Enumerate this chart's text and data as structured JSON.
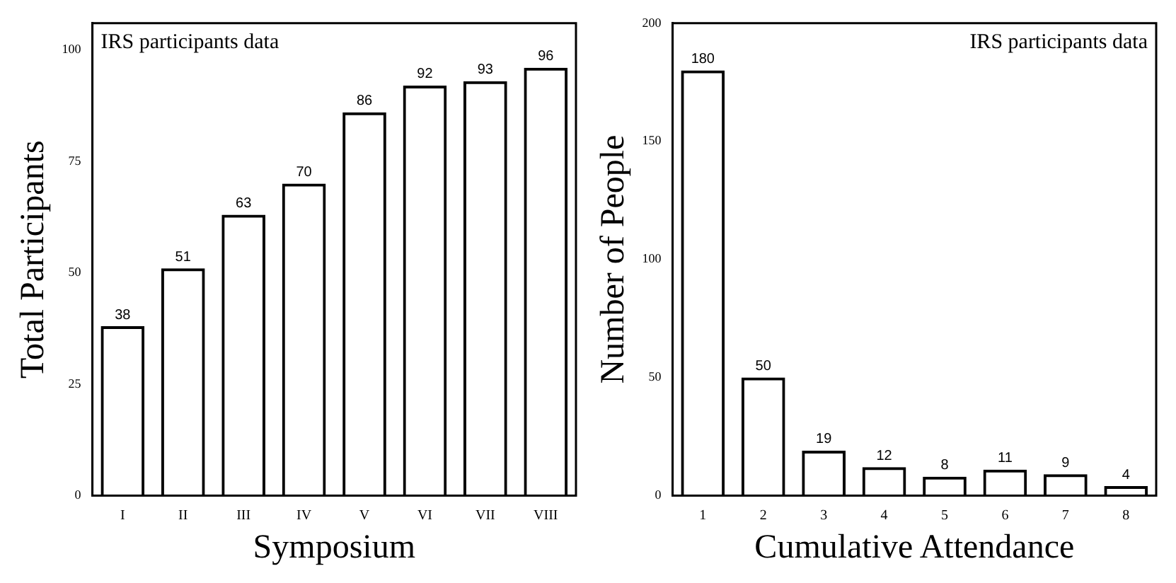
{
  "chart_data": [
    {
      "type": "bar",
      "title": "IRS participants data",
      "xlabel": "Symposium",
      "ylabel": "Total Participants",
      "categories": [
        "I",
        "II",
        "III",
        "IV",
        "V",
        "VI",
        "VII",
        "VIII"
      ],
      "values": [
        38,
        51,
        63,
        70,
        86,
        92,
        93,
        96
      ],
      "color": "#000000",
      "ylim": [
        0,
        106
      ],
      "yticks": [
        0,
        25,
        50,
        75,
        100
      ],
      "data_labels": true,
      "grid": false,
      "legend": false
    },
    {
      "type": "bar",
      "title": "IRS participants data",
      "xlabel": "Cumulative Attendance",
      "ylabel": "Number of People",
      "categories": [
        "1",
        "2",
        "3",
        "4",
        "5",
        "6",
        "7",
        "8"
      ],
      "values": [
        180,
        50,
        19,
        12,
        8,
        11,
        9,
        4
      ],
      "color": "#000000",
      "ylim": [
        0,
        200
      ],
      "yticks": [
        0,
        50,
        100,
        150,
        200
      ],
      "data_labels": true,
      "grid": false,
      "legend": false
    }
  ]
}
